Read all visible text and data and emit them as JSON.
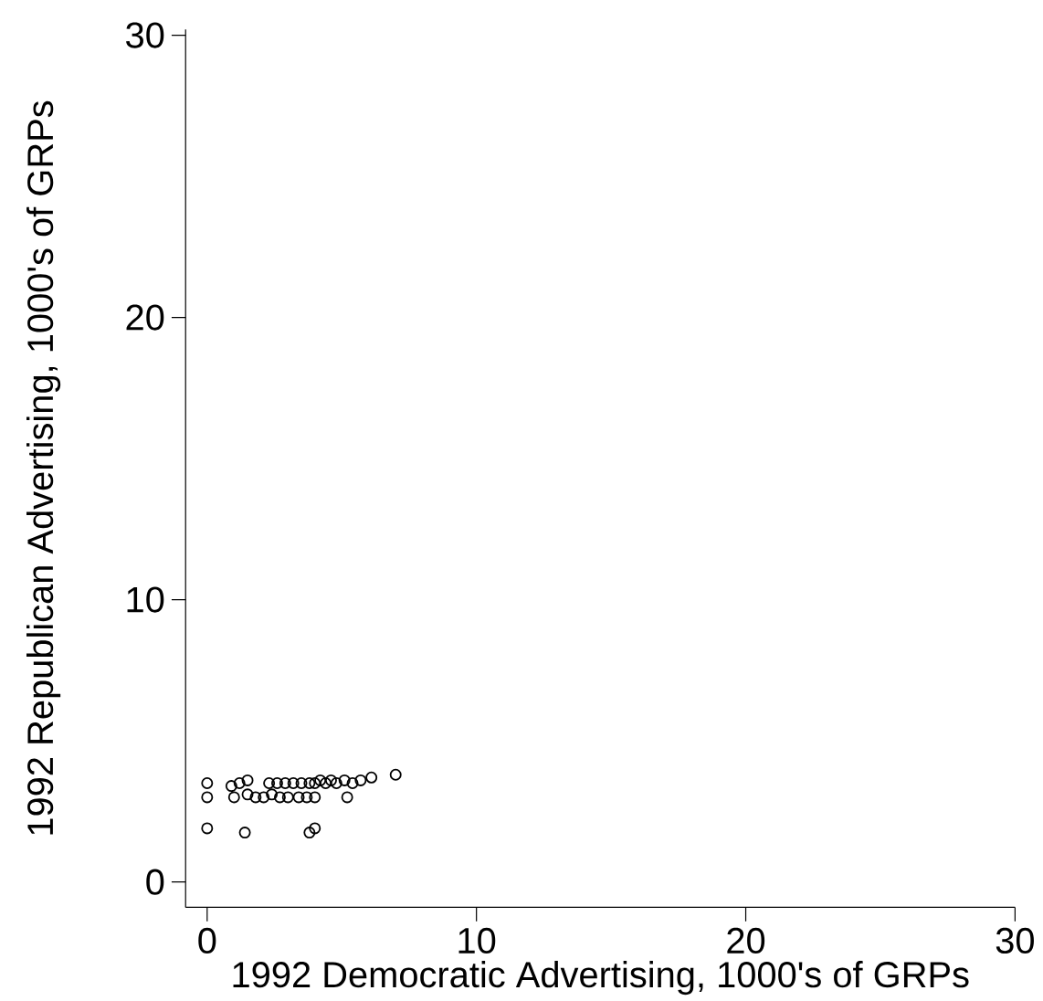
{
  "chart_data": {
    "type": "scatter",
    "xlabel": "1992 Democratic Advertising, 1000's of GRPs",
    "ylabel": "1992 Republican Advertising, 1000's of GRPs",
    "x": [
      0,
      0,
      0,
      0.9,
      1.2,
      1.5,
      1.0,
      1.4,
      2.3,
      2.6,
      2.9,
      3.2,
      3.5,
      3.8,
      4.0,
      4.2,
      4.4,
      4.6,
      4.8,
      5.1,
      5.4,
      5.7,
      6.1,
      7.0,
      1.5,
      1.8,
      2.1,
      2.4,
      2.7,
      3.0,
      3.4,
      3.7,
      4.0,
      5.2,
      3.8,
      4.0
    ],
    "values": [
      3.5,
      3.0,
      1.9,
      3.4,
      3.5,
      3.6,
      3.0,
      1.75,
      3.5,
      3.5,
      3.5,
      3.5,
      3.5,
      3.5,
      3.5,
      3.6,
      3.5,
      3.6,
      3.5,
      3.6,
      3.5,
      3.6,
      3.7,
      3.8,
      3.1,
      3.0,
      3.0,
      3.1,
      3.0,
      3.0,
      3.0,
      3.0,
      3.0,
      3.0,
      1.75,
      1.9
    ],
    "color": "#000000",
    "marker": "circle",
    "grid": false,
    "xlim": [
      -0.8,
      30
    ],
    "ylim": [
      -0.9,
      30.2
    ],
    "xticks": [
      0,
      10,
      20,
      30
    ],
    "yticks": [
      0,
      10,
      20,
      30
    ]
  }
}
